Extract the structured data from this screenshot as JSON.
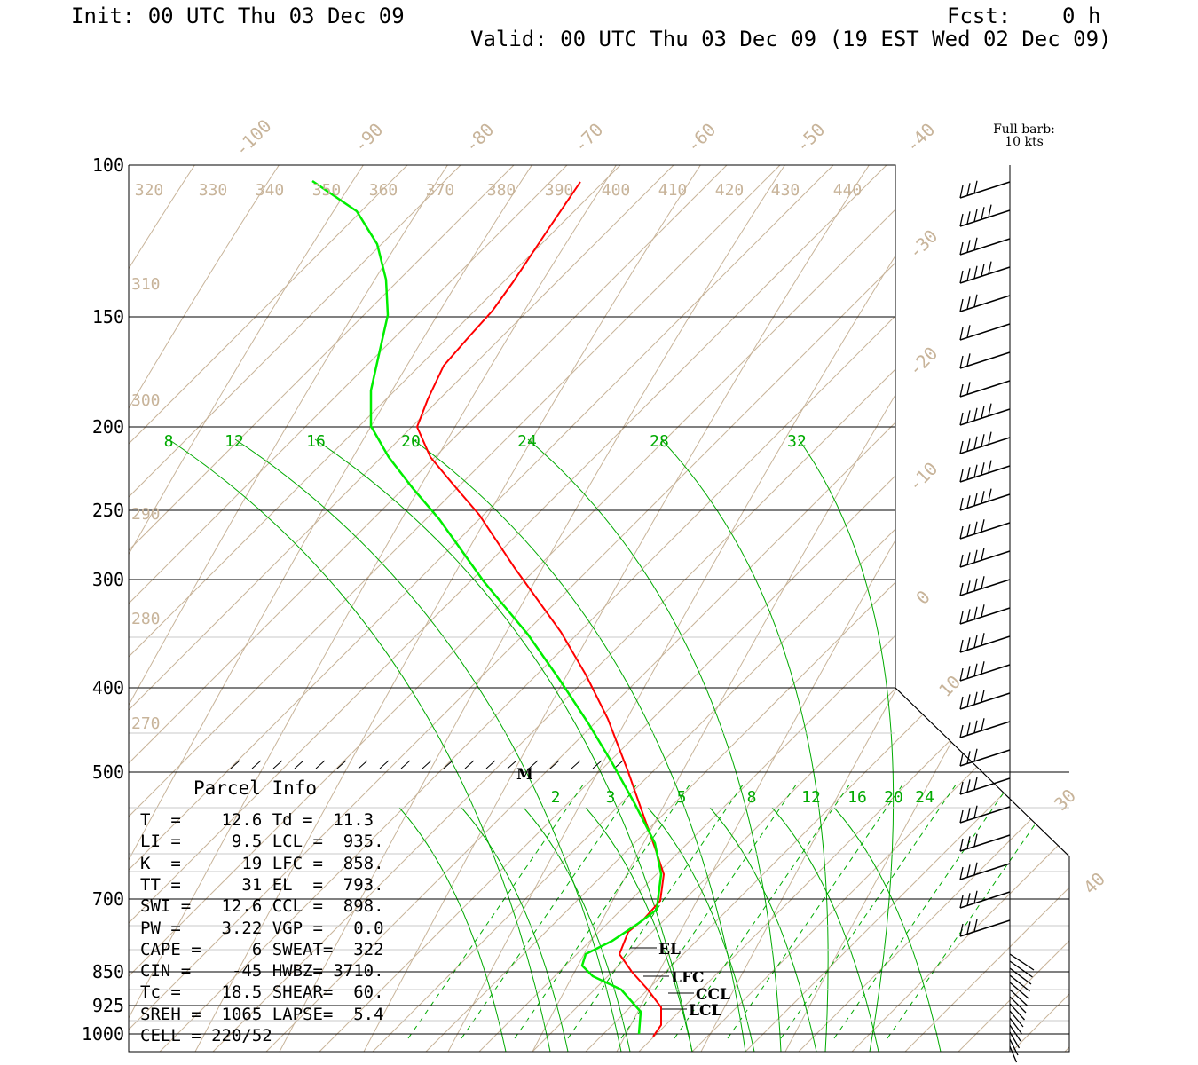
{
  "header": {
    "init": "Init: 00 UTC Thu 03 Dec 09",
    "fcst": "Fcst:    0 h",
    "valid": "Valid: 00 UTC Thu 03 Dec 09 (19 EST Wed 02 Dec 09)"
  },
  "full_barb": {
    "line1": "Full barb:",
    "line2": "10 kts"
  },
  "colors": {
    "temperature": "#ff0000",
    "dewpoint": "#00ee00",
    "mixing": "#00aa00",
    "isotherm": "#c8b49a",
    "frame": "#000000"
  },
  "parcel_info": {
    "title": "Parcel Info",
    "rows": [
      "T  =    12.6 Td =  11.3",
      "LI =     9.5 LCL =  935.",
      "K  =      19 LFC =  858.",
      "TT =      31 EL  =  793.",
      "SWI =   12.6 CCL =  898.",
      "PW =    3.22 VGP =   0.0",
      "CAPE =     6 SWEAT=  322",
      "CIN =    -45 HWBZ= 3710.",
      "Tc =    18.5 SHEAR=  60.",
      "SREH =  1065 LAPSE=  5.4",
      "CELL = 220/52"
    ]
  },
  "chart_data": {
    "type": "line",
    "pressure_levels": [
      100,
      150,
      200,
      250,
      300,
      400,
      500,
      700,
      850,
      925,
      1000
    ],
    "pressure_labels": [
      "100",
      "150",
      "200",
      "250",
      "300",
      "400",
      "500",
      "700",
      "850",
      "925",
      "1000"
    ],
    "isotherm_labels": [
      "-100",
      "-90",
      "-80",
      "-70",
      "-60",
      "-50",
      "-40",
      "-30",
      "-20",
      "-10",
      "0",
      "10",
      "30",
      "40"
    ],
    "theta_labels_top": [
      "320",
      "330",
      "340",
      "350",
      "360",
      "370",
      "380",
      "390",
      "400",
      "410",
      "420",
      "430",
      "440"
    ],
    "theta_labels_left": [
      "310",
      "300",
      "290",
      "280",
      "270"
    ],
    "mixing_ratio_labels_upper": [
      "8",
      "12",
      "16",
      "20",
      "24",
      "28",
      "32"
    ],
    "mixing_ratio_labels_lower": [
      "2",
      "3",
      "5",
      "8",
      "12",
      "16",
      "20",
      "24"
    ],
    "level_markers": [
      {
        "label": "EL",
        "pressure": 793
      },
      {
        "label": "LFC",
        "pressure": 858
      },
      {
        "label": "CCL",
        "pressure": 898
      },
      {
        "label": "LCL",
        "pressure": 935
      }
    ],
    "marker_m": "M",
    "series": [
      {
        "name": "Temperature"
      },
      {
        "name": "Dewpoint"
      }
    ]
  }
}
